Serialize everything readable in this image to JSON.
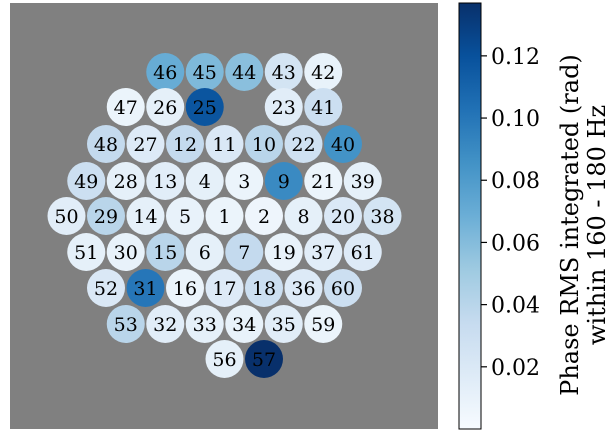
{
  "chart_data": {
    "type": "heatmap",
    "title": "",
    "colorbar": {
      "label_line1": "Phase RMS integrated (rad)",
      "label_line2": "within 160 - 180 Hz",
      "min": 0.0,
      "max": 0.137,
      "ticks": [
        0.02,
        0.04,
        0.06,
        0.08,
        0.1,
        0.12
      ],
      "tick_labels": [
        "0.02",
        "0.04",
        "0.06",
        "0.08",
        "0.10",
        "0.12"
      ],
      "colormap": "Blues"
    },
    "background_color": "#808080",
    "rows": [
      [
        {
          "label": "46",
          "value": 0.07
        },
        {
          "label": "45",
          "value": 0.062
        },
        {
          "label": "44",
          "value": 0.058
        },
        {
          "label": "43",
          "value": 0.025
        },
        {
          "label": "42",
          "value": 0.01
        }
      ],
      [
        {
          "label": "47",
          "value": 0.008
        },
        {
          "label": "26",
          "value": 0.012
        },
        {
          "label": "25",
          "value": 0.118
        },
        {
          "label": "23",
          "value": 0.015
        },
        {
          "label": "41",
          "value": 0.03
        }
      ],
      [
        {
          "label": "48",
          "value": 0.035
        },
        {
          "label": "27",
          "value": 0.018
        },
        {
          "label": "12",
          "value": 0.035
        },
        {
          "label": "11",
          "value": 0.02
        },
        {
          "label": "10",
          "value": 0.04
        },
        {
          "label": "22",
          "value": 0.028
        },
        {
          "label": "40",
          "value": 0.085
        }
      ],
      [
        {
          "label": "49",
          "value": 0.03
        },
        {
          "label": "28",
          "value": 0.012
        },
        {
          "label": "13",
          "value": 0.015
        },
        {
          "label": "4",
          "value": 0.012
        },
        {
          "label": "3",
          "value": 0.008
        },
        {
          "label": "9",
          "value": 0.09
        },
        {
          "label": "21",
          "value": 0.008
        },
        {
          "label": "39",
          "value": 0.012
        }
      ],
      [
        {
          "label": "50",
          "value": 0.015
        },
        {
          "label": "29",
          "value": 0.04
        },
        {
          "label": "14",
          "value": 0.012
        },
        {
          "label": "5",
          "value": 0.01
        },
        {
          "label": "1",
          "value": 0.008
        },
        {
          "label": "2",
          "value": 0.006
        },
        {
          "label": "8",
          "value": 0.012
        },
        {
          "label": "20",
          "value": 0.02
        },
        {
          "label": "38",
          "value": 0.025
        }
      ],
      [
        {
          "label": "51",
          "value": 0.012
        },
        {
          "label": "30",
          "value": 0.01
        },
        {
          "label": "15",
          "value": 0.04
        },
        {
          "label": "6",
          "value": 0.012
        },
        {
          "label": "7",
          "value": 0.035
        },
        {
          "label": "19",
          "value": 0.01
        },
        {
          "label": "37",
          "value": 0.015
        },
        {
          "label": "61",
          "value": 0.018
        }
      ],
      [
        {
          "label": "52",
          "value": 0.02
        },
        {
          "label": "31",
          "value": 0.1
        },
        {
          "label": "16",
          "value": 0.008
        },
        {
          "label": "17",
          "value": 0.018
        },
        {
          "label": "18",
          "value": 0.03
        },
        {
          "label": "36",
          "value": 0.018
        },
        {
          "label": "60",
          "value": 0.03
        }
      ],
      [
        {
          "label": "53",
          "value": 0.04
        },
        {
          "label": "32",
          "value": 0.015
        },
        {
          "label": "33",
          "value": 0.012
        },
        {
          "label": "34",
          "value": 0.01
        },
        {
          "label": "35",
          "value": 0.015
        },
        {
          "label": "59",
          "value": 0.008
        }
      ],
      [
        {
          "label": "56",
          "value": 0.012
        },
        {
          "label": "57",
          "value": 0.137
        }
      ]
    ]
  }
}
